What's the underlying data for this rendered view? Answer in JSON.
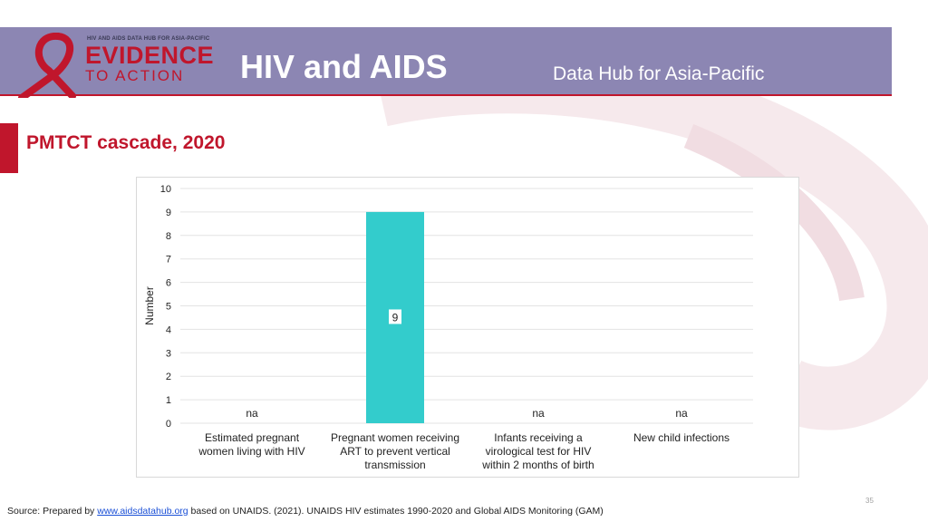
{
  "header": {
    "logo_top": "HIV AND AIDS DATA HUB FOR ASIA-PACIFIC",
    "logo_line1": "EVIDENCE",
    "logo_line2": "TO ACTION",
    "title": "HIV and AIDS",
    "subtitle": "Data Hub for Asia-Pacific"
  },
  "slide": {
    "title": "PMTCT cascade, 2020",
    "page_number": "35"
  },
  "source": {
    "prefix": "Source: Prepared by ",
    "link": "www.aidsdatahub.org",
    "suffix": "  based on UNAIDS. (2021). UNAIDS HIV estimates 1990-2020 and Global AIDS Monitoring (GAM)"
  },
  "colors": {
    "header_bg": "#8c86b3",
    "brand_red": "#c0162c",
    "bar": "#33cccc"
  },
  "chart_data": {
    "type": "bar",
    "title": "",
    "xlabel": "",
    "ylabel": "Number",
    "ylim": [
      0,
      10
    ],
    "yticks": [
      "0",
      "1",
      "2",
      "3",
      "4",
      "5",
      "6",
      "7",
      "8",
      "9",
      "10"
    ],
    "grid": true,
    "categories": [
      [
        "Estimated pregnant",
        "women living with HIV"
      ],
      [
        "Pregnant women receiving",
        "ART to prevent vertical",
        "transmission"
      ],
      [
        "Infants receiving a",
        "virological test for HIV",
        "within 2 months of birth"
      ],
      [
        "New child infections"
      ]
    ],
    "values": [
      null,
      9,
      null,
      null
    ],
    "data_labels": [
      "na",
      "9",
      "na",
      "na"
    ]
  }
}
